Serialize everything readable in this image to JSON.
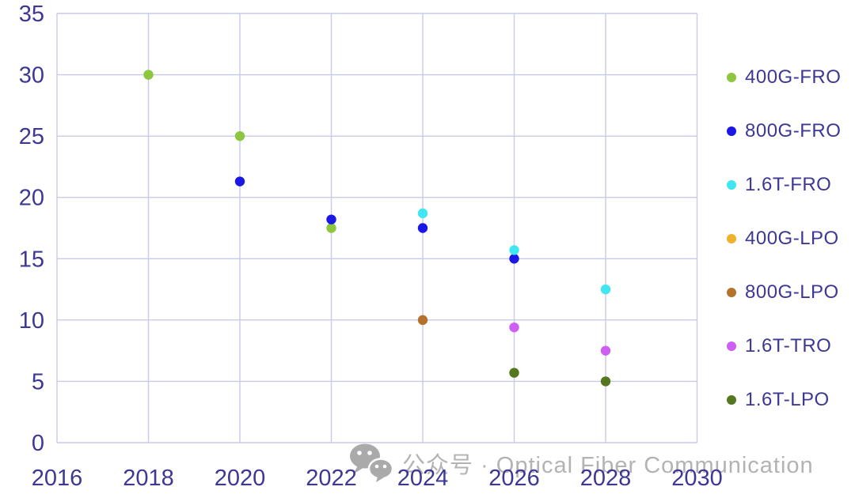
{
  "chart_data": {
    "type": "scatter",
    "title": "",
    "xlabel": "",
    "ylabel": "",
    "xlim": [
      2016,
      2030
    ],
    "ylim": [
      0,
      35
    ],
    "x_ticks": [
      2016,
      2018,
      2020,
      2022,
      2024,
      2026,
      2028,
      2030
    ],
    "y_ticks": [
      0,
      5,
      10,
      15,
      20,
      25,
      30,
      35
    ],
    "grid": true,
    "legend_position": "right",
    "series": [
      {
        "name": "400G-FRO",
        "color": "#8dc63f",
        "points": [
          {
            "x": 2018,
            "y": 30
          },
          {
            "x": 2020,
            "y": 25
          },
          {
            "x": 2022,
            "y": 17.5
          }
        ]
      },
      {
        "name": "800G-FRO",
        "color": "#1b18e6",
        "points": [
          {
            "x": 2020,
            "y": 21.3
          },
          {
            "x": 2022,
            "y": 18.2
          },
          {
            "x": 2024,
            "y": 17.5
          },
          {
            "x": 2026,
            "y": 15
          }
        ]
      },
      {
        "name": "1.6T-FRO",
        "color": "#41e6f2",
        "points": [
          {
            "x": 2024,
            "y": 18.7
          },
          {
            "x": 2026,
            "y": 15.7
          },
          {
            "x": 2028,
            "y": 12.5
          }
        ]
      },
      {
        "name": "400G-LPO",
        "color": "#eeb22d",
        "points": []
      },
      {
        "name": "800G-LPO",
        "color": "#b5722c",
        "points": [
          {
            "x": 2024,
            "y": 10
          }
        ]
      },
      {
        "name": "1.6T-TRO",
        "color": "#cf5ff2",
        "points": [
          {
            "x": 2026,
            "y": 9.4
          },
          {
            "x": 2028,
            "y": 7.5
          }
        ]
      },
      {
        "name": "1.6T-LPO",
        "color": "#55771d",
        "points": [
          {
            "x": 2026,
            "y": 5.7
          },
          {
            "x": 2028,
            "y": 5
          }
        ]
      }
    ]
  },
  "watermark": {
    "icon": "wechat-icon",
    "text": "公众号 · Optical Fiber Communication",
    "color": "#b3b3b3"
  },
  "colors": {
    "axis_label": "#3c3894",
    "gridline": "#c9c9e9",
    "background": "#ffffff"
  }
}
